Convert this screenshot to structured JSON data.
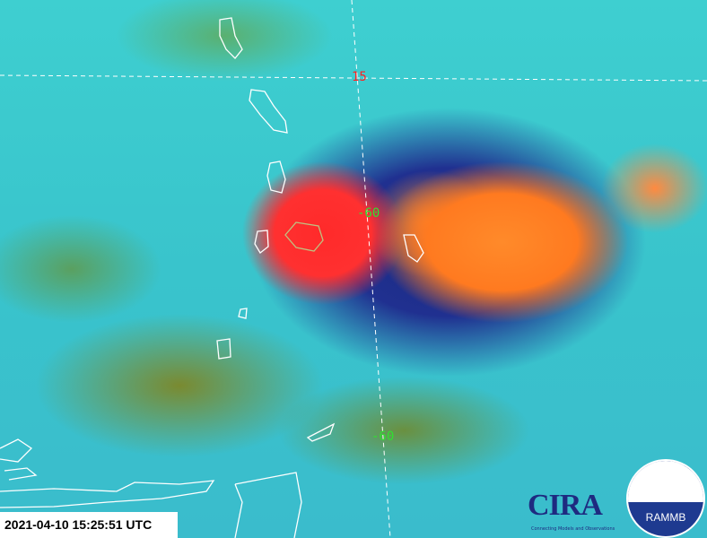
{
  "timestamp": "2021-04-10 15:25:51 UTC",
  "grid_labels": {
    "lat_15": "15",
    "lon_60_upper": "-60",
    "lon_60_lower": "-60"
  },
  "grid_colors": {
    "latitude": "#ff2020",
    "longitude": "#30e030"
  },
  "logos": {
    "cira": "CIRA",
    "cira_tagline": "Connecting Models and Observations",
    "rammb": "RAMMB"
  }
}
